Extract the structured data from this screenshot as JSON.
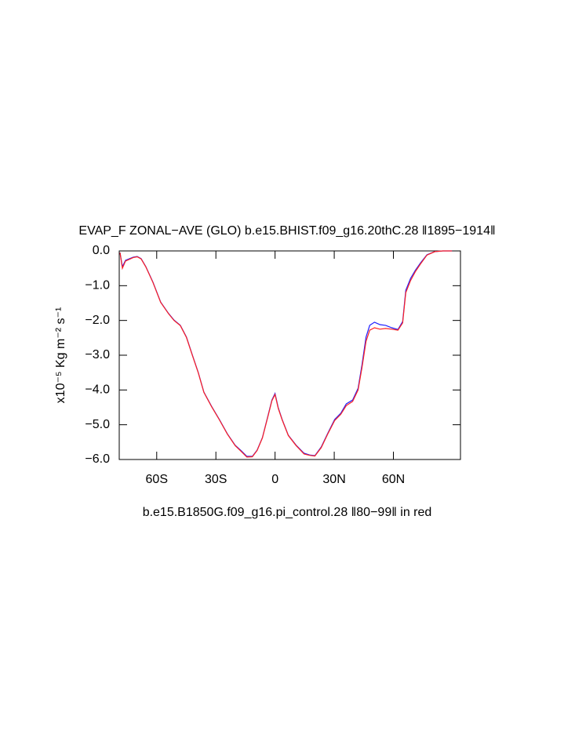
{
  "chart_data": {
    "type": "line",
    "title": "EVAP_F ZONAL−AVE (GLO) b.e15.BHIST.f09_g16.20thC.28 ‖1895−1914‖",
    "subtitle": "b.e15.B1850G.f09_g16.pi_control.28 ‖80−99‖ in red",
    "ylabel": "x10⁻⁵ Kg m⁻² s⁻¹",
    "x": [
      -78.6,
      -77.4,
      -75.8,
      -71.9,
      -69.9,
      -67.9,
      -65.5,
      -61.9,
      -58,
      -54,
      -51.2,
      -48,
      -44.9,
      -42,
      -38.9,
      -36.1,
      -32.2,
      -28.2,
      -24.2,
      -20.2,
      -17.1,
      -14.3,
      -11.5,
      -9.1,
      -6.4,
      -3.6,
      -1.6,
      0,
      1.6,
      3.6,
      6.7,
      10.7,
      14.7,
      17.5,
      20.2,
      23.4,
      26.6,
      30.2,
      33.3,
      36.1,
      39.3,
      42.1,
      44.1,
      46.1,
      48,
      50.4,
      53.2,
      56,
      59.2,
      62.3,
      64.7,
      66.3,
      68.7,
      71.1,
      73.8,
      77,
      81,
      85,
      89.7
    ],
    "series": [
      {
        "name": "b.e15.BHIST.f09_g16.20thC.28",
        "color": "#2020ff",
        "values": [
          -0.05,
          -0.45,
          -0.27,
          -0.18,
          -0.16,
          -0.22,
          -0.45,
          -0.9,
          -1.47,
          -1.8,
          -1.99,
          -2.14,
          -2.48,
          -2.98,
          -3.5,
          -4.06,
          -4.47,
          -4.85,
          -5.26,
          -5.59,
          -5.75,
          -5.91,
          -5.91,
          -5.73,
          -5.37,
          -4.74,
          -4.29,
          -4.1,
          -4.51,
          -4.85,
          -5.3,
          -5.59,
          -5.82,
          -5.87,
          -5.89,
          -5.64,
          -5.26,
          -4.85,
          -4.67,
          -4.4,
          -4.29,
          -3.95,
          -3.27,
          -2.48,
          -2.14,
          -2.05,
          -2.12,
          -2.14,
          -2.21,
          -2.26,
          -2.03,
          -1.13,
          -0.79,
          -0.56,
          -0.34,
          -0.11,
          -0.02,
          0,
          0
        ]
      },
      {
        "name": "b.e15.B1850G.f09_g16.pi_control.28",
        "color": "#ff2020",
        "values": [
          -0.05,
          -0.5,
          -0.29,
          -0.19,
          -0.17,
          -0.23,
          -0.46,
          -0.91,
          -1.48,
          -1.81,
          -2.0,
          -2.15,
          -2.49,
          -2.99,
          -3.51,
          -4.07,
          -4.48,
          -4.86,
          -5.27,
          -5.6,
          -5.77,
          -5.93,
          -5.92,
          -5.74,
          -5.38,
          -4.76,
          -4.31,
          -4.13,
          -4.53,
          -4.86,
          -5.31,
          -5.6,
          -5.84,
          -5.88,
          -5.9,
          -5.66,
          -5.28,
          -4.88,
          -4.7,
          -4.45,
          -4.33,
          -4.0,
          -3.35,
          -2.6,
          -2.28,
          -2.21,
          -2.25,
          -2.23,
          -2.25,
          -2.28,
          -2.07,
          -1.2,
          -0.85,
          -0.6,
          -0.37,
          -0.12,
          -0.02,
          0,
          0
        ]
      }
    ],
    "xlim": [
      -79,
      94
    ],
    "ylim": [
      -6,
      0
    ],
    "xticks": [
      {
        "value": -60,
        "label": "60S"
      },
      {
        "value": -30,
        "label": "30S"
      },
      0,
      {
        "value": 30,
        "label": "30N"
      },
      {
        "value": 60,
        "label": "60N"
      }
    ],
    "yticks": [
      {
        "value": 0,
        "label": "0.0"
      },
      {
        "value": -1,
        "label": "−1.0"
      },
      {
        "value": -2,
        "label": "−2.0"
      },
      {
        "value": -3,
        "label": "−3.0"
      },
      {
        "value": -4,
        "label": "−4.0"
      },
      {
        "value": -5,
        "label": "−5.0"
      },
      {
        "value": -6,
        "label": "−6.0"
      }
    ]
  }
}
